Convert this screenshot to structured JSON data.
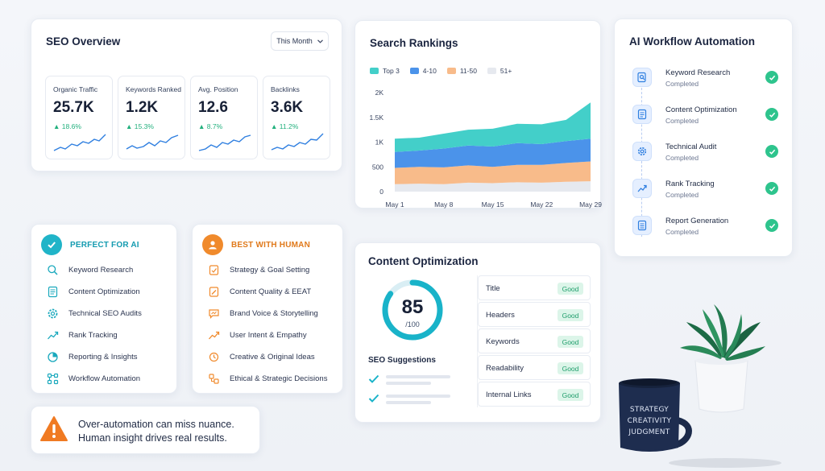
{
  "seo_overview": {
    "title": "SEO Overview",
    "period": "This Month",
    "metrics": [
      {
        "label": "Organic Traffic",
        "value": "25.7K",
        "change": "18.6%"
      },
      {
        "label": "Keywords Ranked",
        "value": "1.2K",
        "change": "15.3%"
      },
      {
        "label": "Avg. Position",
        "value": "12.6",
        "change": "8.7%"
      },
      {
        "label": "Backlinks",
        "value": "3.6K",
        "change": "11.2%"
      }
    ]
  },
  "search_rankings": {
    "title": "Search Rankings",
    "legend": [
      "Top 3",
      "4-10",
      "11-50",
      "51+"
    ]
  },
  "chart_data": {
    "type": "area",
    "title": "Search Rankings",
    "categories": [
      "May 1",
      "May 8",
      "May 15",
      "May 22",
      "May 29"
    ],
    "y_ticks": [
      "2K",
      "1.5K",
      "1K",
      "500",
      "0"
    ],
    "ylim": [
      0,
      2000
    ],
    "stacked": true,
    "legend_position": "top-left",
    "x": [
      0,
      1,
      2,
      3,
      4,
      5,
      6,
      7,
      8
    ],
    "series": [
      {
        "name": "51+",
        "color": "#e6e9ef",
        "values": [
          150,
          160,
          150,
          180,
          170,
          190,
          180,
          200,
          210
        ]
      },
      {
        "name": "11-50",
        "color": "#f8bb8a",
        "values": [
          330,
          340,
          340,
          350,
          330,
          350,
          360,
          380,
          400
        ]
      },
      {
        "name": "4-10",
        "color": "#4b93ea",
        "values": [
          320,
          330,
          380,
          400,
          410,
          440,
          420,
          440,
          460
        ]
      },
      {
        "name": "Top 3",
        "color": "#43cfc9",
        "values": [
          270,
          260,
          300,
          320,
          360,
          390,
          400,
          430,
          730
        ]
      }
    ]
  },
  "ai_workflow": {
    "title": "AI Workflow Automation",
    "steps": [
      {
        "name": "Keyword Research",
        "status": "Completed"
      },
      {
        "name": "Content Optimization",
        "status": "Completed"
      },
      {
        "name": "Technical Audit",
        "status": "Completed"
      },
      {
        "name": "Rank Tracking",
        "status": "Completed"
      },
      {
        "name": "Report Generation",
        "status": "Completed"
      }
    ]
  },
  "perfect_ai": {
    "heading": "PERFECT FOR AI",
    "items": [
      "Keyword Research",
      "Content Optimization",
      "Technical SEO Audits",
      "Rank Tracking",
      "Reporting & Insights",
      "Workflow Automation"
    ]
  },
  "best_human": {
    "heading": "BEST WITH HUMAN",
    "items": [
      "Strategy & Goal Setting",
      "Content Quality & EEAT",
      "Brand Voice & Storytelling",
      "User Intent & Empathy",
      "Creative & Original Ideas",
      "Ethical & Strategic Decisions"
    ]
  },
  "content_optimization": {
    "title": "Content Optimization",
    "score": "85",
    "score_max": "/100",
    "score_fraction": 0.85,
    "suggestions_title": "SEO Suggestions",
    "factors": [
      {
        "name": "Title",
        "status": "Good"
      },
      {
        "name": "Headers",
        "status": "Good"
      },
      {
        "name": "Keywords",
        "status": "Good"
      },
      {
        "name": "Readability",
        "status": "Good"
      },
      {
        "name": "Internal Links",
        "status": "Good"
      }
    ]
  },
  "warning": {
    "line1": "Over-automation can miss nuance.",
    "line2": "Human insight drives real results."
  },
  "mug": {
    "lines": [
      "STRATEGY",
      "CREATIVITY",
      "JUDGMENT"
    ]
  },
  "colors": {
    "accent_green": "#2ec48d",
    "accent_blue": "#2f7fe0",
    "accent_teal": "#20b4c8",
    "accent_orange": "#f08a2c",
    "warning_orange": "#f07a22"
  }
}
